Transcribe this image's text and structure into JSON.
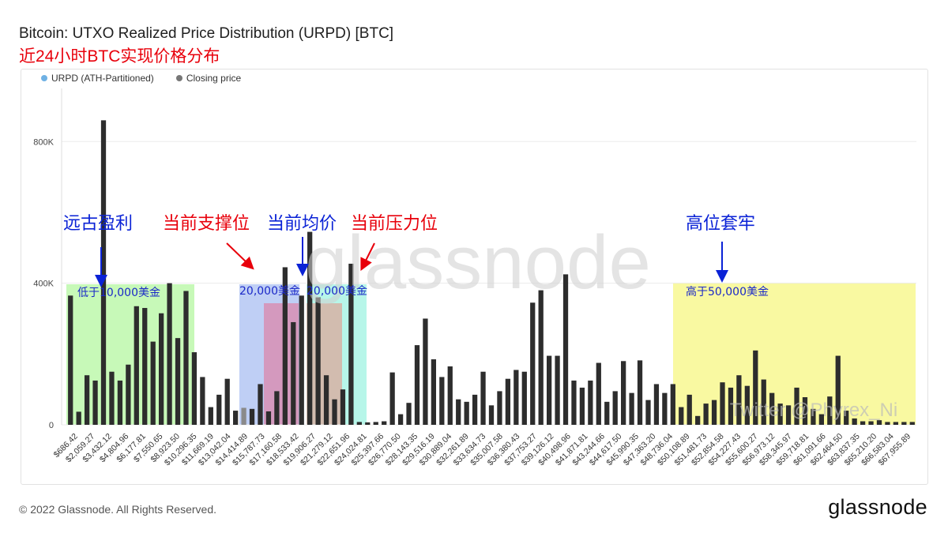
{
  "header": {
    "title": "Bitcoin: UTXO Realized Price Distribution (URPD) [BTC]",
    "subtitle": "近24小时BTC实现价格分布"
  },
  "legend": [
    {
      "label": "URPD (ATH-Partitioned)",
      "color": "#6fb1e4"
    },
    {
      "label": "Closing price",
      "color": "#777777"
    }
  ],
  "footer": {
    "copyright": "© 2022 Glassnode. All Rights Reserved.",
    "brand": "glassnode"
  },
  "watermark": "glassnode",
  "twitter_handle": "Twitter @Phyrex_Ni",
  "annotations": {
    "ancient_profit": "远古盈利",
    "support": "当前支撑位",
    "average": "当前均价",
    "resistance": "当前压力位",
    "trapped": "高位套牢",
    "below_10000": "低于10,000美金",
    "zone_20000_left": "20,000美金",
    "zone_20000_right": "20,000美金",
    "above_50000": "高于50,000美金"
  },
  "colors": {
    "bar": "#2d2d2d",
    "closing_bar": "#8a8a8a",
    "red": "#e8000b",
    "blue": "#0a22d6"
  },
  "chart_data": {
    "type": "bar",
    "title": "Bitcoin: UTXO Realized Price Distribution (URPD) [BTC]",
    "xlabel": "",
    "ylabel": "",
    "ylim": [
      0,
      950000
    ],
    "y_ticks": [
      "0",
      "400K",
      "800K"
    ],
    "y_tick_values": [
      0,
      400000,
      800000
    ],
    "closing_price_index": 21,
    "x_tick_labels": [
      "$686.42",
      "$2,059.27",
      "$3,432.12",
      "$4,804.96",
      "$6,177.81",
      "$7,550.65",
      "$8,923.50",
      "$10,296.35",
      "$11,669.19",
      "$13,042.04",
      "$14,414.89",
      "$15,787.73",
      "$17,160.58",
      "$18,533.42",
      "$19,906.27",
      "$21,279.12",
      "$22,651.96",
      "$24,024.81",
      "$25,397.66",
      "$26,770.50",
      "$28,143.35",
      "$29,516.19",
      "$30,889.04",
      "$32,261.89",
      "$33,634.73",
      "$35,007.58",
      "$36,380.43",
      "$37,753.27",
      "$39,126.12",
      "$40,498.96",
      "$41,871.81",
      "$43,244.66",
      "$44,617.50",
      "$45,990.35",
      "$47,363.20",
      "$48,736.04",
      "$50,108.89",
      "$51,481.73",
      "$52,854.58",
      "$54,227.43",
      "$55,600.27",
      "$56,973.12",
      "$58,345.97",
      "$59,718.81",
      "$61,091.66",
      "$62,464.50",
      "$63,837.35",
      "$65,210.20",
      "$66,583.04",
      "$67,955.89"
    ],
    "values": [
      365000,
      37000,
      140000,
      125000,
      860000,
      150000,
      125000,
      170000,
      335000,
      330000,
      235000,
      315000,
      400000,
      245000,
      378000,
      205000,
      135000,
      50000,
      85000,
      130000,
      40000,
      48000,
      45000,
      115000,
      38000,
      95000,
      445000,
      290000,
      365000,
      545000,
      360000,
      140000,
      72000,
      100000,
      455000,
      8000,
      7000,
      8000,
      10000,
      148000,
      30000,
      62000,
      225000,
      300000,
      185000,
      135000,
      165000,
      72000,
      65000,
      85000,
      150000,
      55000,
      95000,
      130000,
      155000,
      150000,
      345000,
      380000,
      195000,
      195000,
      425000,
      125000,
      105000,
      125000,
      175000,
      65000,
      95000,
      180000,
      90000,
      182000,
      70000,
      115000,
      90000,
      115000,
      50000,
      85000,
      25000,
      60000,
      70000,
      120000,
      105000,
      140000,
      110000,
      210000,
      128000,
      90000,
      60000,
      55000,
      105000,
      78000,
      45000,
      30000,
      80000,
      195000,
      40000,
      18000,
      10000,
      10000,
      13000,
      8000,
      8000,
      8000,
      8000
    ]
  }
}
